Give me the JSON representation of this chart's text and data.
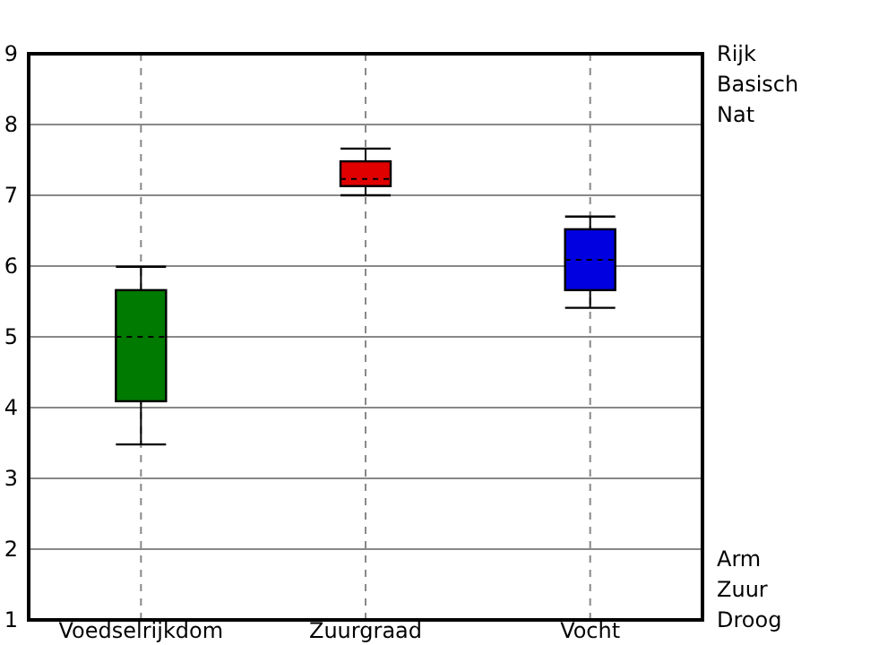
{
  "chart_data": {
    "type": "box",
    "categories": [
      "Voedselrijkdom",
      "Zuurgraad",
      "Vocht"
    ],
    "boxes": [
      {
        "low": 3.48,
        "q1": 4.09,
        "median": 5.0,
        "q3": 5.66,
        "high": 5.99
      },
      {
        "low": 7.0,
        "q1": 7.13,
        "median": 7.23,
        "q3": 7.48,
        "high": 7.66
      },
      {
        "low": 5.41,
        "q1": 5.66,
        "median": 6.09,
        "q3": 6.52,
        "high": 6.7
      }
    ],
    "colors": [
      "#007a00",
      "#e00000",
      "#0000e0"
    ],
    "ylim": [
      1,
      9
    ],
    "yticks": [
      1,
      2,
      3,
      4,
      5,
      6,
      7,
      8,
      9
    ],
    "annotations": [
      "Rijk\nBasisch\nNat",
      "Arm\nZuur\nDroog"
    ],
    "grid": true
  }
}
